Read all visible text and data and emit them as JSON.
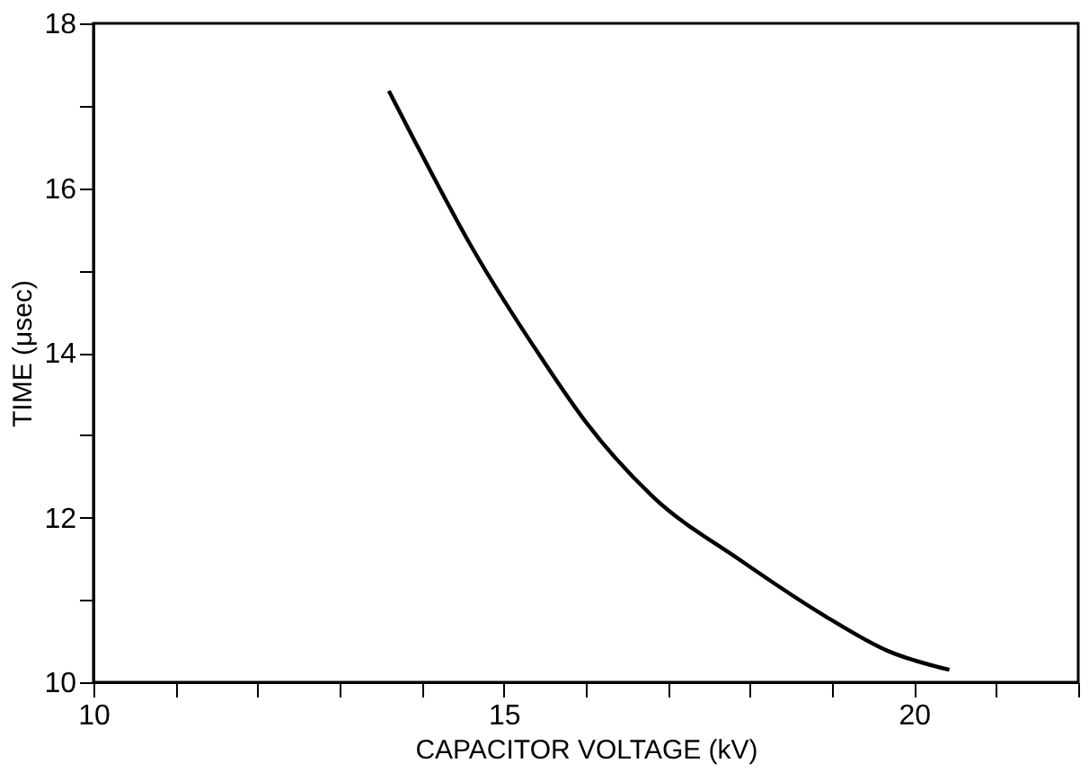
{
  "chart_data": {
    "type": "line",
    "xlabel": "CAPACITOR  VOLTAGE (kV)",
    "ylabel": "TIME (μsec)",
    "x": [
      13.6,
      13.9,
      14.6,
      15.47,
      16.0,
      16.82,
      17.87,
      18.92,
      19.68,
      20.43
    ],
    "series": [
      {
        "color": "#000000",
        "values": [
          17.18,
          16.6,
          15.3,
          13.92,
          13.16,
          12.25,
          11.49,
          10.8,
          10.38,
          10.15
        ]
      }
    ],
    "xlim": [
      10,
      22
    ],
    "ylim": [
      10,
      18
    ],
    "xticks": [
      10,
      {
        "value": 11,
        "label": null
      },
      {
        "value": 12,
        "label": null
      },
      {
        "value": 13,
        "label": null
      },
      {
        "value": 14,
        "label": null
      },
      15,
      {
        "value": 16,
        "label": null
      },
      {
        "value": 17,
        "label": null
      },
      {
        "value": 18,
        "label": null
      },
      {
        "value": 19,
        "label": null
      },
      20,
      {
        "value": 21,
        "label": null
      },
      {
        "value": 22,
        "label": null
      }
    ],
    "yticks": [
      10,
      {
        "value": 11,
        "label": null
      },
      12,
      {
        "value": 13,
        "label": null
      },
      14,
      {
        "value": 15,
        "label": null
      },
      16,
      {
        "value": 17,
        "label": null
      },
      18
    ],
    "grid": false,
    "legend": false,
    "marker": "none",
    "line_style": "solid"
  }
}
